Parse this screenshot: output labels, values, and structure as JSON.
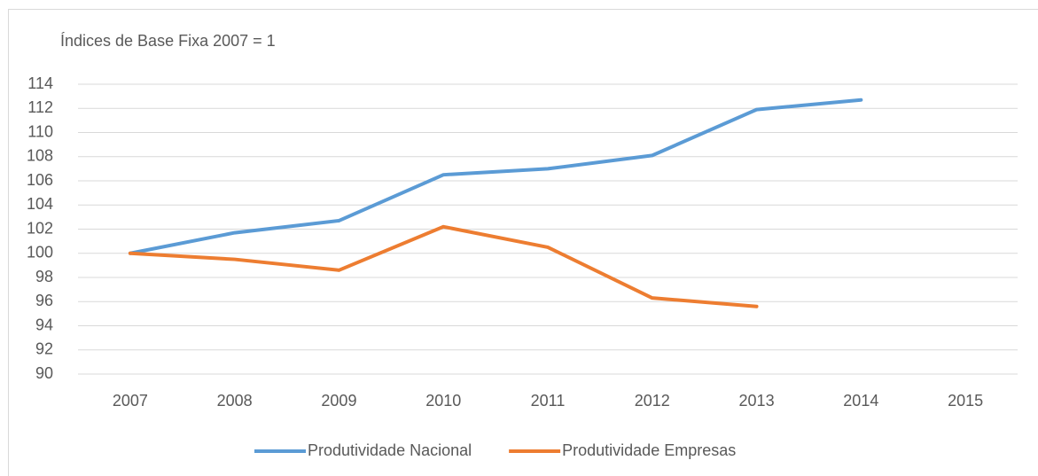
{
  "chart_data": {
    "type": "line",
    "title": "Índices de Base Fixa 2007 = 1",
    "categories": [
      "2007",
      "2008",
      "2009",
      "2010",
      "2011",
      "2012",
      "2013",
      "2014",
      "2015"
    ],
    "series": [
      {
        "name": "Produtividade Nacional",
        "color": "#5b9bd5",
        "values": [
          100,
          101.7,
          102.7,
          106.5,
          107.0,
          108.1,
          111.9,
          112.7,
          null
        ]
      },
      {
        "name": "Produtividade Empresas",
        "color": "#ed7d31",
        "values": [
          100,
          99.5,
          98.6,
          102.2,
          100.5,
          96.3,
          95.6,
          null,
          null
        ]
      }
    ],
    "ylim": [
      90,
      114
    ],
    "yticks": [
      90,
      92,
      94,
      96,
      98,
      100,
      102,
      104,
      106,
      108,
      110,
      112,
      114
    ],
    "grid": true,
    "legend": "bottom"
  }
}
